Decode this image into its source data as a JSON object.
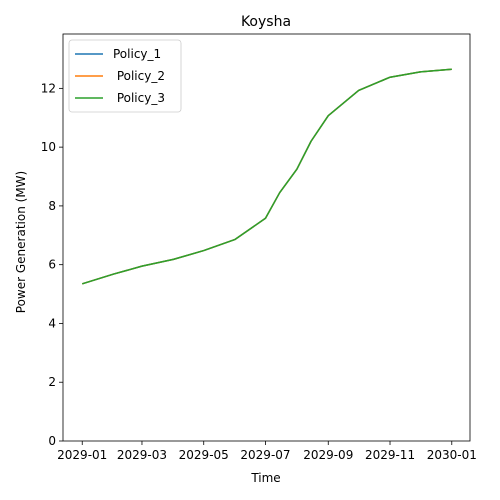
{
  "chart_data": {
    "type": "line",
    "title": "Koysha",
    "xlabel": "Time",
    "ylabel": "Power Generation (MW)",
    "x": [
      "2029-01-01",
      "2029-02-01",
      "2029-03-01",
      "2029-04-01",
      "2029-05-01",
      "2029-06-01",
      "2029-07-01",
      "2029-07-15",
      "2029-08-01",
      "2029-08-15",
      "2029-09-01",
      "2029-10-01",
      "2029-11-01",
      "2029-12-01",
      "2030-01-01"
    ],
    "series": [
      {
        "name": "Policy_1",
        "color": "#1f77b4",
        "values": [
          5.35,
          5.68,
          5.95,
          6.18,
          6.48,
          6.86,
          7.58,
          8.45,
          9.25,
          10.2,
          11.07,
          11.93,
          12.38,
          12.56,
          12.65
        ]
      },
      {
        "name": " Policy_2",
        "color": "#ff7f0e",
        "values": [
          5.35,
          5.68,
          5.95,
          6.18,
          6.48,
          6.86,
          7.58,
          8.45,
          9.25,
          10.2,
          11.07,
          11.93,
          12.38,
          12.56,
          12.65
        ]
      },
      {
        "name": " Policy_3",
        "color": "#2ca02c",
        "values": [
          5.35,
          5.68,
          5.95,
          6.18,
          6.48,
          6.86,
          7.58,
          8.45,
          9.25,
          10.2,
          11.07,
          11.93,
          12.38,
          12.56,
          12.65
        ]
      }
    ],
    "x_ticks": [
      "2029-01",
      "2029-03",
      "2029-05",
      "2029-07",
      "2029-09",
      "2029-11",
      "2030-01"
    ],
    "x_tick_dates": [
      "2029-01-01",
      "2029-03-01",
      "2029-05-01",
      "2029-07-01",
      "2029-09-01",
      "2029-11-01",
      "2030-01-01"
    ],
    "xlim": [
      "2028-12-13",
      "2030-01-19"
    ],
    "y_ticks": [
      0,
      2,
      4,
      6,
      8,
      10,
      12
    ],
    "ylim": [
      0,
      13.85
    ],
    "grid": false,
    "legend": "top-left"
  }
}
